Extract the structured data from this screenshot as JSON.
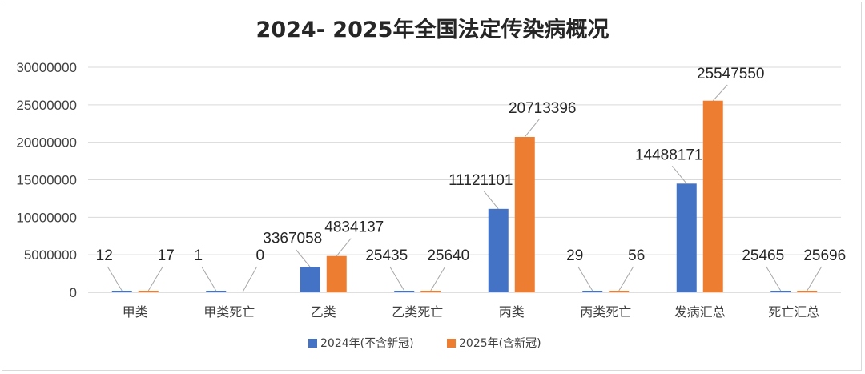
{
  "chart_data": {
    "type": "bar",
    "title": "2024- 2025年全国法定传染病概况",
    "categories": [
      "甲类",
      "甲类死亡",
      "乙类",
      "乙类死亡",
      "丙类",
      "丙类死亡",
      "发病汇总",
      "死亡汇总"
    ],
    "series": [
      {
        "name": "2024年(不含新冠)",
        "color": "#4472C4",
        "values": [
          12,
          1,
          3367058,
          25435,
          11121101,
          29,
          14488171,
          25465
        ]
      },
      {
        "name": "2025年(含新冠)",
        "color": "#ED7D31",
        "values": [
          17,
          0,
          4834137,
          25640,
          20713396,
          56,
          25547550,
          25696
        ]
      }
    ],
    "ylim": [
      0,
      30000000
    ],
    "yticks": [
      0,
      5000000,
      10000000,
      15000000,
      20000000,
      25000000,
      30000000
    ],
    "xlabel": "",
    "ylabel": "",
    "grid": true,
    "legend_position": "bottom",
    "data_labels": true
  }
}
